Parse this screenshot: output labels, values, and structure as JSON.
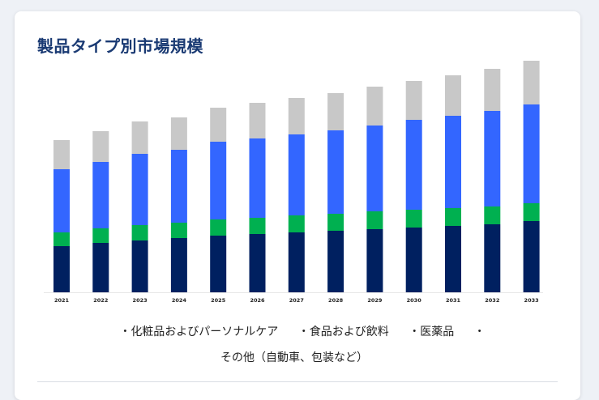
{
  "title": "製品タイプ別市場規模",
  "chart_data": {
    "type": "bar",
    "stacked": true,
    "categories": [
      "2021",
      "2022",
      "2023",
      "2024",
      "2025",
      "2026",
      "2027",
      "2028",
      "2029",
      "2030",
      "2031",
      "2032",
      "2033"
    ],
    "series": [
      {
        "name": "化粧品およびパーソナルケア",
        "color": "#002060",
        "values": [
          28.5,
          30.5,
          32,
          33.5,
          35,
          36,
          37,
          38,
          39,
          40,
          41,
          42,
          44
        ]
      },
      {
        "name": "食品および飲料",
        "color": "#00b050",
        "values": [
          8.5,
          9,
          9.5,
          9.5,
          10,
          10,
          10.5,
          10.5,
          11,
          11,
          11,
          11,
          11
        ]
      },
      {
        "name": "医薬品",
        "color": "#3366ff",
        "values": [
          39,
          41,
          44,
          45,
          48,
          49,
          50,
          51.5,
          53,
          55.5,
          57,
          59,
          61
        ]
      },
      {
        "name": "その他（自動車、包装など）",
        "color": "#c8c8c8",
        "values": [
          18,
          19,
          20,
          20,
          21,
          22,
          22.5,
          23,
          24,
          24,
          25,
          26,
          27
        ]
      }
    ],
    "xlabel": "",
    "ylabel": "",
    "ylim": [
      0,
      150
    ],
    "grid": false,
    "legend": "bottom"
  }
}
